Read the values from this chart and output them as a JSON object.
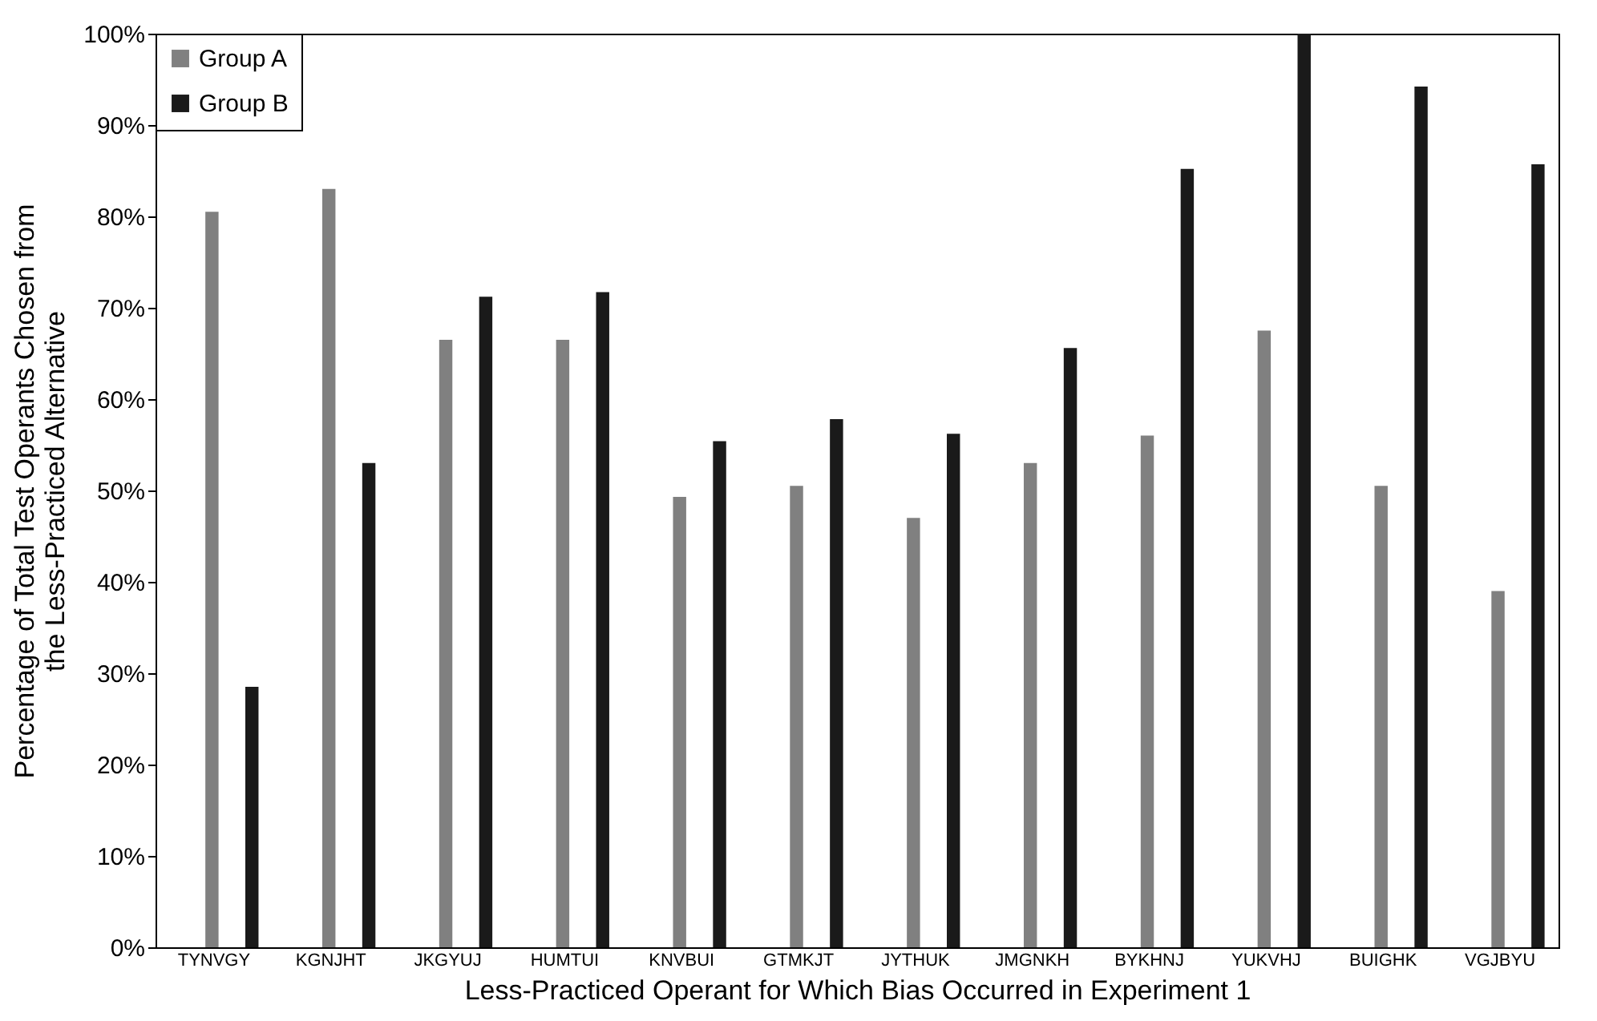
{
  "chart_data": {
    "type": "bar",
    "xlabel": "Less-Practiced Operant for Which Bias Occurred in Experiment 1",
    "ylabel": "Percentage of Total Test Operants Chosen from the Less-Practiced Alternative",
    "categories": [
      "TYNVGY",
      "KGNJHT",
      "JKGYUJ",
      "HUMTUI",
      "KNVBUI",
      "GTMKJT",
      "JYTHUK",
      "JMGNKH",
      "BYKHNJ",
      "YUKVHJ",
      "BUIGHK",
      "VGJBYU"
    ],
    "series": [
      {
        "name": "Group A",
        "color": "#808080",
        "values": [
          80.5,
          83,
          66.5,
          66.5,
          49.3,
          50.5,
          47,
          53,
          56,
          67.5,
          50.5,
          39
        ]
      },
      {
        "name": "Group B",
        "color": "#1a1a1a",
        "values": [
          28.5,
          53,
          71.2,
          71.7,
          55.4,
          57.8,
          56.2,
          65.6,
          85.2,
          100,
          94.2,
          85.7
        ]
      }
    ],
    "ylim": [
      0,
      100
    ],
    "yticks": [
      {
        "value": 0,
        "label": "0%"
      },
      {
        "value": 10,
        "label": "10%"
      },
      {
        "value": 20,
        "label": "20%"
      },
      {
        "value": 30,
        "label": "30%"
      },
      {
        "value": 40,
        "label": "40%"
      },
      {
        "value": 50,
        "label": "50%"
      },
      {
        "value": 60,
        "label": "60%"
      },
      {
        "value": 70,
        "label": "70%"
      },
      {
        "value": 80,
        "label": "80%"
      },
      {
        "value": 90,
        "label": "90%"
      },
      {
        "value": 100,
        "label": "100%"
      }
    ],
    "grid": false,
    "legend": "top left"
  }
}
